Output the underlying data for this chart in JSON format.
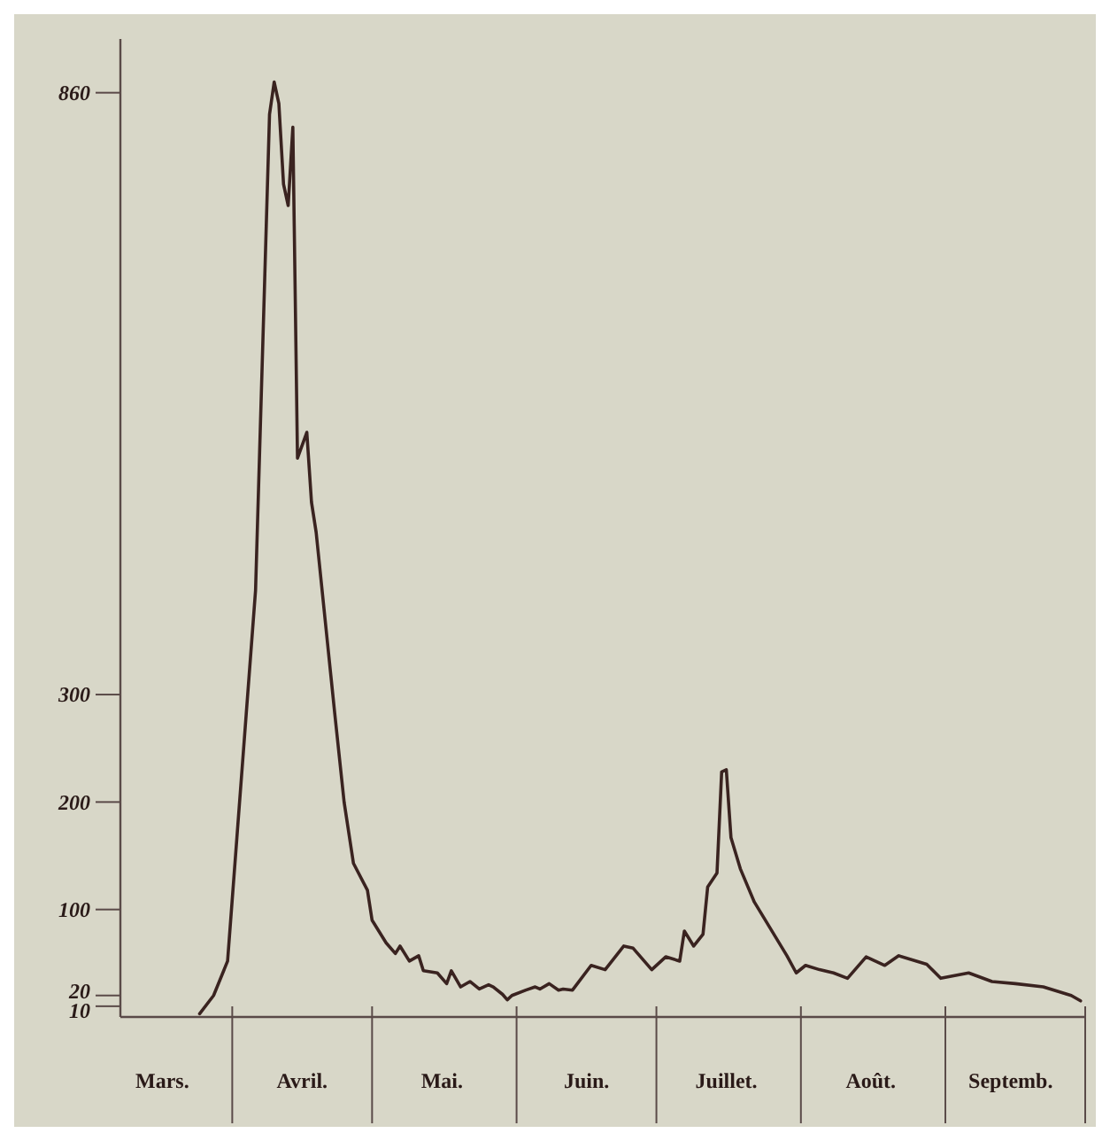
{
  "chart_data": {
    "type": "line",
    "color": "#3a2320",
    "x": [
      "--03-25",
      "--03-28",
      "--03-31",
      "--04-02",
      "--04-04",
      "--04-06",
      "--04-08",
      "--04-09",
      "--04-10",
      "--04-11",
      "--04-12",
      "--04-13",
      "--04-14",
      "--04-15",
      "--04-17",
      "--04-18",
      "--04-19",
      "--04-23",
      "--04-25",
      "--04-27",
      "--04-30",
      "--05-01",
      "--05-04",
      "--05-06",
      "--05-07",
      "--05-09",
      "--05-11",
      "--05-12",
      "--05-15",
      "--05-17",
      "--05-18",
      "--05-20",
      "--05-22",
      "--05-24",
      "--05-26",
      "--05-27",
      "--05-29",
      "--05-30",
      "--05-31",
      "--06-03",
      "--06-05",
      "--06-06",
      "--06-08",
      "--06-10",
      "--06-11",
      "--06-13",
      "--06-17",
      "--06-20",
      "--06-24",
      "--06-26",
      "--06-30",
      "--07-03",
      "--07-06",
      "--07-07",
      "--07-09",
      "--07-11",
      "--07-12",
      "--07-14",
      "--07-15",
      "--07-16",
      "--07-17",
      "--07-19",
      "--07-22",
      "--07-29",
      "--07-31",
      "--08-02",
      "--08-05",
      "--08-08",
      "--08-11",
      "--08-15",
      "--08-19",
      "--08-22",
      "--08-28",
      "--08-31",
      "--09-06",
      "--09-11",
      "--09-16",
      "--09-22",
      "--09-28",
      "--09-30"
    ],
    "values": [
      3,
      20,
      52,
      167,
      282,
      397,
      692,
      840,
      870,
      850,
      775,
      755,
      828,
      520,
      544,
      479,
      451,
      282,
      200,
      143,
      118,
      90,
      69,
      59,
      66,
      52,
      57,
      43,
      41,
      31,
      43,
      28,
      33,
      26,
      30,
      28,
      21,
      16,
      20,
      25,
      28,
      26,
      31,
      25,
      26,
      25,
      48,
      44,
      66,
      64,
      44,
      56,
      52,
      80,
      66,
      77,
      121,
      134,
      228,
      230,
      167,
      138,
      107,
      57,
      41,
      48,
      44,
      41,
      36,
      56,
      48,
      57,
      49,
      36,
      41,
      33,
      31,
      28,
      20,
      15
    ],
    "xlim": [
      "--03-08",
      "--10-01"
    ],
    "xticks": [
      {
        "value": "--03-17",
        "label": "Mars."
      },
      {
        "value": "--04-01",
        "label": null
      },
      {
        "value": "--04-16",
        "label": "Avril."
      },
      {
        "value": "--05-01",
        "label": null
      },
      {
        "value": "--05-16",
        "label": "Mai."
      },
      {
        "value": "--06-01",
        "label": null
      },
      {
        "value": "--06-16",
        "label": "Juin."
      },
      {
        "value": "--07-01",
        "label": null
      },
      {
        "value": "--07-16",
        "label": "Juillet."
      },
      {
        "value": "--08-01",
        "label": null
      },
      {
        "value": "--08-16",
        "label": "Août."
      },
      {
        "value": "--09-01",
        "label": null
      },
      {
        "value": "--09-15",
        "label": "Septemb."
      },
      {
        "value": "--10-01",
        "label": null
      }
    ],
    "ylim": [
      0,
      910
    ],
    "yticks": [
      10,
      20,
      100,
      200,
      300,
      860
    ],
    "grid": false,
    "marker": "none",
    "line_style": "solid"
  }
}
